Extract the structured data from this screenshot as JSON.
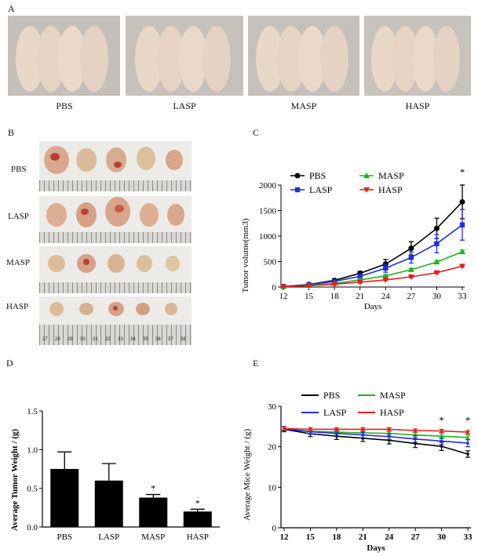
{
  "panels": {
    "A": "A",
    "B": "B",
    "C": "C",
    "D": "D",
    "E": "E"
  },
  "panel_a": {
    "labels": [
      "PBS",
      "LASP",
      "MASP",
      "HASP"
    ]
  },
  "panel_b": {
    "labels": [
      "PBS",
      "LASP",
      "MASP",
      "HASP"
    ],
    "ruler_numbers": [
      "27",
      "28",
      "29",
      "30",
      "31",
      "32",
      "33",
      "34",
      "35",
      "36",
      "37",
      "38"
    ]
  },
  "chart_data": [
    {
      "id": "C",
      "type": "line",
      "xlabel": "Days",
      "ylabel": "Tumor volume(mm3)",
      "x": [
        12,
        15,
        18,
        21,
        24,
        27,
        30,
        33
      ],
      "ylim": [
        0,
        2000
      ],
      "yticks": [
        0,
        500,
        1000,
        1500,
        2000
      ],
      "colors": {
        "PBS": "#000000",
        "LASP": "#1f2fd6",
        "MASP": "#1fb31f",
        "HASP": "#e02020"
      },
      "series": [
        {
          "name": "PBS",
          "values": [
            10,
            50,
            130,
            270,
            450,
            760,
            1150,
            1670
          ],
          "errors": [
            5,
            15,
            30,
            40,
            90,
            130,
            200,
            330
          ]
        },
        {
          "name": "LASP",
          "values": [
            10,
            45,
            110,
            210,
            370,
            580,
            850,
            1220
          ],
          "errors": [
            5,
            15,
            25,
            40,
            80,
            110,
            180,
            300
          ]
        },
        {
          "name": "MASP",
          "values": [
            8,
            30,
            70,
            140,
            220,
            340,
            490,
            690
          ],
          "errors": [
            3,
            8,
            10,
            15,
            20,
            25,
            30,
            35
          ]
        },
        {
          "name": "HASP",
          "values": [
            8,
            25,
            55,
            95,
            140,
            200,
            280,
            410
          ],
          "errors": [
            3,
            5,
            8,
            10,
            12,
            15,
            18,
            20
          ]
        }
      ],
      "annotations": [
        "*"
      ]
    },
    {
      "id": "D",
      "type": "bar",
      "ylabel": "Average Tumor Weight / (g)",
      "categories": [
        "PBS",
        "LASP",
        "MASP",
        "HASP"
      ],
      "values": [
        0.75,
        0.6,
        0.38,
        0.2
      ],
      "errors": [
        0.22,
        0.22,
        0.04,
        0.03
      ],
      "significance": [
        "",
        "",
        "*",
        "*"
      ],
      "ylim": [
        0,
        1.5
      ],
      "yticks": [
        "0.0",
        "0.5",
        "1.0",
        "1.5"
      ]
    },
    {
      "id": "E",
      "type": "line",
      "xlabel": "Days",
      "ylabel": "Average Mice Weight / (g)",
      "x": [
        12,
        15,
        18,
        21,
        24,
        27,
        30,
        33
      ],
      "ylim": [
        0,
        30
      ],
      "yticks": [
        0,
        10,
        20,
        30
      ],
      "colors": {
        "PBS": "#000000",
        "MASP": "#1fb31f",
        "LASP": "#1f2fd6",
        "HASP": "#e02020"
      },
      "series": [
        {
          "name": "PBS",
          "values": [
            24.3,
            23.2,
            22.6,
            22.1,
            21.6,
            20.8,
            20.1,
            18.2
          ],
          "errors": [
            0.6,
            0.7,
            0.8,
            0.8,
            0.9,
            1.0,
            1.0,
            0.8
          ]
        },
        {
          "name": "MASP",
          "values": [
            24.4,
            23.8,
            23.6,
            23.4,
            23.3,
            22.9,
            22.6,
            22.3
          ],
          "errors": [
            0.5,
            0.5,
            0.5,
            0.5,
            0.5,
            0.6,
            0.6,
            0.6
          ]
        },
        {
          "name": "LASP",
          "values": [
            24.4,
            23.7,
            23.3,
            22.9,
            22.5,
            21.9,
            21.4,
            20.9
          ],
          "errors": [
            0.6,
            0.6,
            0.6,
            0.7,
            0.7,
            0.8,
            0.8,
            0.9
          ]
        },
        {
          "name": "HASP",
          "values": [
            24.5,
            24.3,
            24.3,
            24.3,
            24.3,
            24.0,
            23.9,
            23.6
          ],
          "errors": [
            0.4,
            0.4,
            0.4,
            0.4,
            0.4,
            0.4,
            0.4,
            0.4
          ]
        }
      ],
      "annotations": [
        "*",
        "*"
      ]
    }
  ]
}
